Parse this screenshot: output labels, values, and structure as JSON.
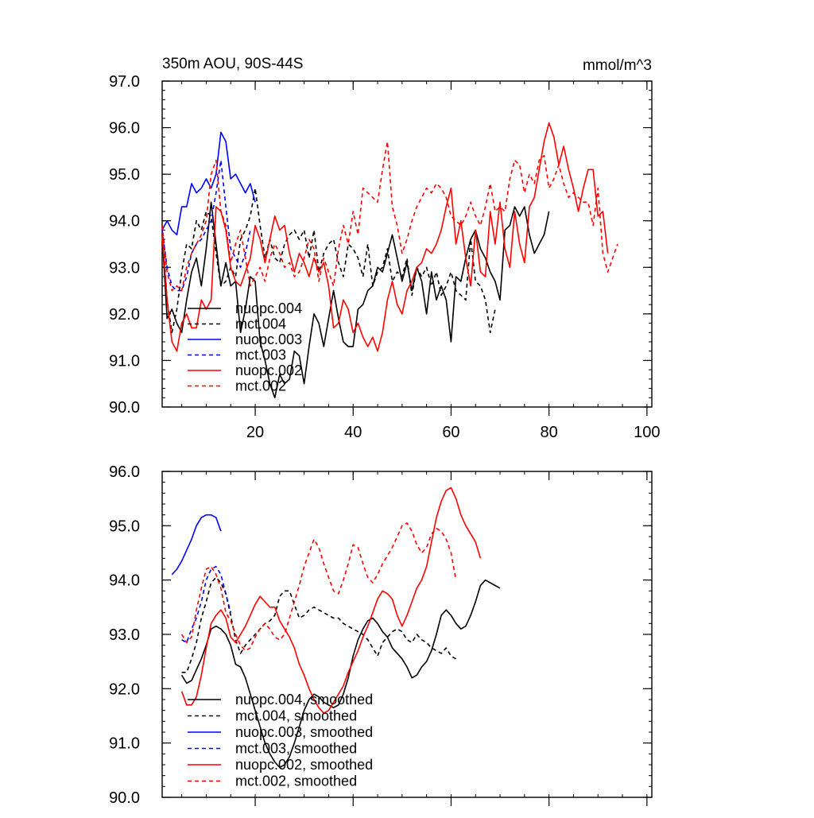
{
  "figure": {
    "top_title_left": "350m AOU, 90S-44S",
    "top_title_right": "mmol/m^3"
  },
  "chart_data": [
    {
      "type": "line",
      "xlim": [
        1,
        101
      ],
      "ylim": [
        90.0,
        97.0
      ],
      "xticks": [
        20,
        40,
        60,
        80,
        100
      ],
      "xtick_labels": [
        "20",
        "40",
        "60",
        "80",
        "100"
      ],
      "yticks": [
        90.0,
        91.0,
        92.0,
        93.0,
        94.0,
        95.0,
        96.0,
        97.0
      ],
      "ytick_labels": [
        "90.0",
        "91.0",
        "92.0",
        "93.0",
        "94.0",
        "95.0",
        "96.0",
        "97.0"
      ],
      "legend": "bottom-left",
      "series": [
        {
          "name": "nuopc.004",
          "color": "#000000",
          "dash": "solid",
          "x_start": 1,
          "values": [
            93.7,
            91.9,
            92.1,
            91.8,
            91.6,
            92.3,
            92.9,
            93.2,
            92.6,
            93.4,
            94.4,
            93.5,
            92.6,
            93.1,
            92.6,
            92.7,
            91.6,
            92.1,
            92.8,
            92.7,
            91.4,
            91.0,
            90.5,
            90.2,
            90.7,
            90.5,
            90.6,
            91.2,
            91.1,
            90.5,
            91.3,
            92.0,
            91.8,
            91.3,
            91.9,
            92.5,
            91.9,
            91.4,
            91.3,
            91.3,
            92.1,
            92.2,
            92.5,
            92.6,
            93.0,
            92.9,
            93.3,
            93.7,
            93.2,
            92.7,
            93.1,
            92.5,
            93.0,
            92.7,
            92.0,
            92.9,
            92.3,
            92.6,
            92.3,
            91.4,
            92.8,
            92.7,
            93.2,
            93.6,
            93.8,
            93.4,
            93.2,
            92.9,
            92.7,
            92.3,
            93.8,
            93.9,
            94.3,
            94.1,
            94.3,
            93.7,
            93.3,
            93.5,
            93.7,
            94.2
          ]
        },
        {
          "name": "mct.004",
          "color": "#000000",
          "dash": "dashed",
          "x_start": 1,
          "values": [
            93.9,
            92.3,
            91.6,
            92.1,
            92.9,
            93.5,
            93.4,
            94.0,
            93.8,
            94.2,
            94.1,
            93.3,
            92.6,
            92.7,
            93.0,
            92.8,
            93.6,
            93.8,
            94.1,
            94.7,
            93.9,
            93.2,
            93.6,
            93.2,
            93.1,
            93.5,
            93.7,
            93.8,
            93.6,
            93.8,
            93.2,
            93.8,
            92.9,
            93.3,
            93.5,
            93.6,
            93.1,
            92.8,
            93.5,
            93.4,
            93.2,
            92.8,
            93.5,
            92.6,
            92.9,
            93.0,
            93.4,
            92.7,
            92.9,
            92.8,
            93.2,
            92.4,
            93.0,
            92.8,
            93.0,
            92.6,
            92.9,
            92.4,
            92.6,
            92.9,
            92.5,
            92.4,
            92.3,
            93.6,
            92.7,
            92.6,
            92.3,
            91.6,
            92.1
          ]
        },
        {
          "name": "nuopc.003",
          "color": "#0000ff",
          "dash": "solid",
          "x_start": 1,
          "values": [
            93.8,
            94.0,
            93.8,
            93.7,
            94.3,
            94.3,
            94.8,
            94.6,
            94.7,
            94.9,
            94.7,
            95.0,
            95.9,
            95.7,
            94.9,
            95.0,
            94.8,
            94.6,
            94.8,
            94.4
          ]
        },
        {
          "name": "mct.003",
          "color": "#0000ff",
          "dash": "dashed",
          "x_start": 1,
          "values": [
            93.8,
            93.0,
            92.6,
            92.5,
            92.5,
            92.8,
            93.3,
            93.5,
            93.6,
            93.8,
            94.0,
            94.6,
            95.3,
            94.3,
            93.4,
            93.2,
            93.0,
            93.3,
            93.8
          ]
        },
        {
          "name": "nuopc.002",
          "color": "#ff0000",
          "dash": "solid",
          "x_start": 1,
          "values": [
            93.7,
            92.3,
            91.4,
            91.2,
            91.8,
            92.0,
            91.7,
            91.7,
            92.3,
            92.1,
            92.3,
            94.3,
            94.2,
            93.8,
            93.0,
            92.7,
            92.6,
            92.9,
            93.2,
            93.9,
            93.6,
            93.1,
            93.6,
            94.1,
            93.8,
            93.9,
            93.3,
            92.9,
            93.3,
            93.1,
            92.8,
            93.2,
            92.9,
            93.1,
            92.6,
            91.7,
            91.8,
            92.3,
            92.1,
            91.6,
            91.8,
            91.5,
            91.3,
            91.5,
            91.2,
            91.6,
            92.3,
            92.7,
            92.2,
            92.0,
            92.5,
            92.7,
            93.0,
            93.1,
            93.4,
            93.3,
            93.5,
            93.8,
            94.3,
            94.7,
            93.5,
            94.0,
            93.2,
            92.6,
            93.8,
            92.9,
            92.8,
            94.2,
            93.5,
            94.4,
            93.4,
            93.0,
            94.2,
            93.5,
            93.1,
            94.3,
            94.5,
            95.1,
            95.7,
            96.1,
            95.8,
            95.2,
            95.6,
            95.1,
            94.7,
            94.2,
            94.7,
            95.1,
            95.1,
            94.1,
            94.2,
            93.3
          ]
        },
        {
          "name": "mct.002",
          "color": "#ff0000",
          "dash": "dashed",
          "x_start": 1,
          "values": [
            93.9,
            92.9,
            92.5,
            92.6,
            92.5,
            93.0,
            93.3,
            93.5,
            93.7,
            94.0,
            95.0,
            95.3,
            94.2,
            93.9,
            93.1,
            93.5,
            93.8,
            93.2,
            92.6,
            92.8,
            93.0,
            92.7,
            93.2,
            93.5,
            93.3,
            93.0,
            93.1,
            92.8,
            92.9,
            93.2,
            93.6,
            93.4,
            92.7,
            93.2,
            92.9,
            92.6,
            93.4,
            93.9,
            93.5,
            94.2,
            93.7,
            94.7,
            94.6,
            94.5,
            94.4,
            95.1,
            95.7,
            94.3,
            93.9,
            93.3,
            93.6,
            94.0,
            94.3,
            94.5,
            94.7,
            94.6,
            94.8,
            94.7,
            94.5,
            94.1,
            94.0,
            93.9,
            94.1,
            94.4,
            94.1,
            93.9,
            94.3,
            94.8,
            94.2,
            94.3,
            94.2,
            94.9,
            95.3,
            95.2,
            94.6,
            95.0,
            94.8,
            95.3,
            95.4,
            94.7,
            94.9,
            95.2,
            94.8,
            94.5,
            94.6,
            94.5,
            94.4,
            94.4,
            93.9,
            94.7,
            93.3,
            92.9,
            93.2,
            93.5
          ]
        }
      ],
      "legend_order": [
        "nuopc.004",
        "mct.004",
        "nuopc.003",
        "mct.003",
        "nuopc.002",
        "mct.002"
      ]
    },
    {
      "type": "line",
      "xlim": [
        1,
        101
      ],
      "ylim": [
        90.0,
        96.0
      ],
      "xticks": [
        20,
        40,
        60,
        80,
        100
      ],
      "xtick_labels": [],
      "yticks": [
        90.0,
        91.0,
        92.0,
        93.0,
        94.0,
        95.0,
        96.0
      ],
      "ytick_labels": [
        "90.0",
        "91.0",
        "92.0",
        "93.0",
        "94.0",
        "95.0",
        "96.0"
      ],
      "legend": "bottom-left",
      "series": [
        {
          "name": "nuopc.004, smoothed",
          "color": "#000000",
          "dash": "solid",
          "x_start": 5,
          "values": [
            92.25,
            92.1,
            92.15,
            92.35,
            92.55,
            92.8,
            93.1,
            93.15,
            93.1,
            93.0,
            92.8,
            92.45,
            92.4,
            92.2,
            91.9,
            91.6,
            91.3,
            91.0,
            90.8,
            90.65,
            90.55,
            90.6,
            90.75,
            91.0,
            91.3,
            91.6,
            91.8,
            91.9,
            91.85,
            91.75,
            91.7,
            91.65,
            91.7,
            91.9,
            92.2,
            92.6,
            92.9,
            93.1,
            93.25,
            93.3,
            93.2,
            93.05,
            92.95,
            92.75,
            92.65,
            92.55,
            92.4,
            92.2,
            92.25,
            92.4,
            92.5,
            92.7,
            93.0,
            93.35,
            93.45,
            93.35,
            93.2,
            93.1,
            93.15,
            93.35,
            93.6,
            93.9,
            94.0,
            93.95,
            93.9,
            93.85
          ]
        },
        {
          "name": "mct.004, smoothed",
          "color": "#000000",
          "dash": "dashed",
          "x_start": 5,
          "values": [
            92.3,
            92.3,
            92.55,
            92.85,
            93.3,
            93.6,
            93.95,
            94.05,
            93.95,
            93.75,
            93.35,
            92.9,
            92.65,
            92.8,
            92.9,
            93.0,
            93.1,
            93.2,
            93.25,
            93.35,
            93.7,
            93.8,
            93.8,
            93.55,
            93.3,
            93.35,
            93.45,
            93.5,
            93.45,
            93.4,
            93.35,
            93.3,
            93.3,
            93.2,
            93.15,
            93.1,
            93.05,
            93.0,
            92.9,
            92.75,
            92.6,
            92.85,
            92.95,
            93.05,
            93.1,
            93.05,
            92.9,
            92.85,
            93.0,
            92.9,
            92.85,
            92.75,
            92.7,
            92.65,
            92.75,
            92.6,
            92.55
          ]
        },
        {
          "name": "nuopc.003, smoothed",
          "color": "#0000ff",
          "dash": "solid",
          "x_start": 3,
          "values": [
            94.1,
            94.2,
            94.35,
            94.55,
            94.75,
            95.0,
            95.15,
            95.2,
            95.2,
            95.15,
            94.9
          ]
        },
        {
          "name": "mct.003, smoothed",
          "color": "#0000ff",
          "dash": "dashed",
          "x_start": 5,
          "values": [
            92.9,
            92.85,
            93.1,
            93.3,
            93.6,
            94.0,
            94.2,
            94.25,
            94.1,
            93.75,
            93.4
          ]
        },
        {
          "name": "nuopc.002, smoothed",
          "color": "#ff0000",
          "dash": "solid",
          "x_start": 5,
          "values": [
            91.95,
            91.7,
            91.7,
            91.85,
            92.25,
            92.75,
            93.2,
            93.35,
            93.45,
            93.3,
            92.95,
            92.85,
            93.0,
            93.15,
            93.35,
            93.55,
            93.7,
            93.6,
            93.5,
            93.5,
            93.25,
            93.1,
            92.95,
            92.75,
            92.45,
            92.25,
            92.0,
            91.8,
            91.65,
            91.55,
            91.6,
            91.75,
            91.9,
            92.05,
            92.3,
            92.5,
            92.7,
            92.95,
            93.15,
            93.4,
            93.65,
            93.8,
            93.75,
            93.65,
            93.35,
            93.15,
            93.35,
            93.6,
            93.85,
            94.0,
            94.25,
            94.7,
            95.15,
            95.45,
            95.65,
            95.7,
            95.5,
            95.2,
            95.0,
            94.85,
            94.7,
            94.4
          ]
        },
        {
          "name": "mct.002, smoothed",
          "color": "#ff0000",
          "dash": "dashed",
          "x_start": 5,
          "values": [
            93.0,
            92.85,
            92.95,
            93.45,
            93.85,
            94.2,
            94.25,
            94.1,
            93.85,
            93.4,
            93.25,
            93.0,
            92.8,
            92.7,
            92.75,
            92.95,
            93.1,
            93.2,
            93.1,
            92.95,
            92.9,
            93.0,
            93.3,
            93.6,
            93.9,
            94.25,
            94.5,
            94.75,
            94.6,
            94.3,
            94.05,
            93.8,
            93.75,
            94.0,
            94.3,
            94.65,
            94.6,
            94.3,
            94.05,
            93.95,
            94.1,
            94.3,
            94.45,
            94.6,
            94.8,
            95.0,
            95.05,
            94.9,
            94.65,
            94.5,
            94.6,
            94.85,
            94.95,
            94.9,
            94.75,
            94.5,
            94.0
          ]
        }
      ],
      "legend_order": [
        "nuopc.004, smoothed",
        "mct.004, smoothed",
        "nuopc.003, smoothed",
        "mct.003, smoothed",
        "nuopc.002, smoothed",
        "mct.002, smoothed"
      ]
    }
  ]
}
